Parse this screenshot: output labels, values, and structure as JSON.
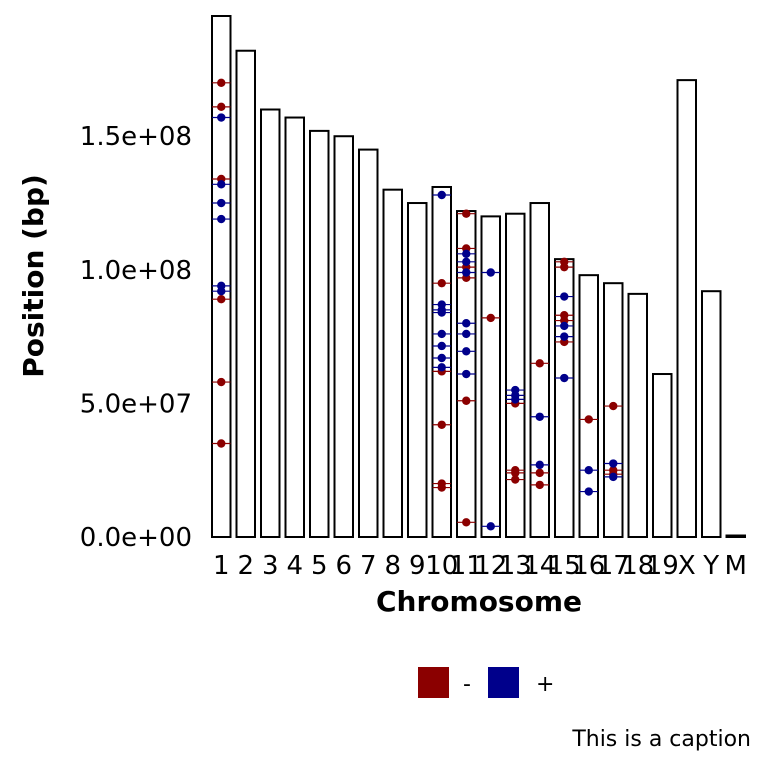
{
  "chart_data": {
    "type": "bar",
    "xlabel": "Chromosome",
    "ylabel": "Position (bp)",
    "caption": "This is a caption",
    "ylim": [
      0,
      195000000
    ],
    "y_ticks": [
      {
        "value": 0,
        "label": "0.0e+00"
      },
      {
        "value": 50000000,
        "label": "5.0e+07"
      },
      {
        "value": 100000000,
        "label": "1.0e+08"
      },
      {
        "value": 150000000,
        "label": "1.5e+08"
      }
    ],
    "categories": [
      "1",
      "2",
      "3",
      "4",
      "5",
      "6",
      "7",
      "8",
      "9",
      "10",
      "11",
      "12",
      "13",
      "14",
      "15",
      "16",
      "17",
      "18",
      "19",
      "X",
      "Y",
      "M"
    ],
    "chromosome_lengths": [
      195000000,
      182000000,
      160000000,
      157000000,
      152000000,
      150000000,
      145000000,
      130000000,
      125000000,
      131000000,
      122000000,
      120000000,
      121000000,
      125000000,
      104000000,
      98000000,
      95000000,
      91000000,
      61000000,
      171000000,
      92000000,
      16000
    ],
    "legend": [
      {
        "label": "-",
        "color": "#8b0000"
      },
      {
        "label": "+",
        "color": "#00008b"
      }
    ],
    "series": [
      {
        "strand": "-",
        "color": "#8b0000",
        "points": [
          {
            "chr": "1",
            "pos": 170000000
          },
          {
            "chr": "1",
            "pos": 161000000
          },
          {
            "chr": "1",
            "pos": 134000000
          },
          {
            "chr": "1",
            "pos": 89000000
          },
          {
            "chr": "1",
            "pos": 58000000
          },
          {
            "chr": "1",
            "pos": 35000000
          },
          {
            "chr": "10",
            "pos": 95000000
          },
          {
            "chr": "10",
            "pos": 62000000
          },
          {
            "chr": "10",
            "pos": 42000000
          },
          {
            "chr": "10",
            "pos": 20000000
          },
          {
            "chr": "10",
            "pos": 18500000
          },
          {
            "chr": "11",
            "pos": 121000000
          },
          {
            "chr": "11",
            "pos": 108000000
          },
          {
            "chr": "11",
            "pos": 101000000
          },
          {
            "chr": "11",
            "pos": 97000000
          },
          {
            "chr": "11",
            "pos": 51000000
          },
          {
            "chr": "11",
            "pos": 5500000
          },
          {
            "chr": "12",
            "pos": 82000000
          },
          {
            "chr": "13",
            "pos": 50000000
          },
          {
            "chr": "13",
            "pos": 25000000
          },
          {
            "chr": "13",
            "pos": 24000000
          },
          {
            "chr": "13",
            "pos": 21500000
          },
          {
            "chr": "14",
            "pos": 65000000
          },
          {
            "chr": "14",
            "pos": 24000000
          },
          {
            "chr": "14",
            "pos": 19500000
          },
          {
            "chr": "15",
            "pos": 103000000
          },
          {
            "chr": "15",
            "pos": 101000000
          },
          {
            "chr": "15",
            "pos": 83000000
          },
          {
            "chr": "15",
            "pos": 81000000
          },
          {
            "chr": "15",
            "pos": 73000000
          },
          {
            "chr": "16",
            "pos": 44000000
          },
          {
            "chr": "17",
            "pos": 49000000
          },
          {
            "chr": "17",
            "pos": 25000000
          },
          {
            "chr": "17",
            "pos": 23500000
          }
        ]
      },
      {
        "strand": "+",
        "color": "#00008b",
        "points": [
          {
            "chr": "1",
            "pos": 157000000
          },
          {
            "chr": "1",
            "pos": 132000000
          },
          {
            "chr": "1",
            "pos": 125000000
          },
          {
            "chr": "1",
            "pos": 119000000
          },
          {
            "chr": "1",
            "pos": 94000000
          },
          {
            "chr": "1",
            "pos": 92000000
          },
          {
            "chr": "10",
            "pos": 128000000
          },
          {
            "chr": "10",
            "pos": 87000000
          },
          {
            "chr": "10",
            "pos": 85000000
          },
          {
            "chr": "10",
            "pos": 84000000
          },
          {
            "chr": "10",
            "pos": 76000000
          },
          {
            "chr": "10",
            "pos": 71500000
          },
          {
            "chr": "10",
            "pos": 67000000
          },
          {
            "chr": "10",
            "pos": 63500000
          },
          {
            "chr": "11",
            "pos": 106000000
          },
          {
            "chr": "11",
            "pos": 103000000
          },
          {
            "chr": "11",
            "pos": 99000000
          },
          {
            "chr": "11",
            "pos": 80000000
          },
          {
            "chr": "11",
            "pos": 76000000
          },
          {
            "chr": "11",
            "pos": 69500000
          },
          {
            "chr": "11",
            "pos": 61000000
          },
          {
            "chr": "12",
            "pos": 99000000
          },
          {
            "chr": "12",
            "pos": 4000000
          },
          {
            "chr": "13",
            "pos": 55000000
          },
          {
            "chr": "13",
            "pos": 53000000
          },
          {
            "chr": "13",
            "pos": 51500000
          },
          {
            "chr": "14",
            "pos": 45000000
          },
          {
            "chr": "14",
            "pos": 27000000
          },
          {
            "chr": "15",
            "pos": 90000000
          },
          {
            "chr": "15",
            "pos": 79000000
          },
          {
            "chr": "15",
            "pos": 75000000
          },
          {
            "chr": "15",
            "pos": 59500000
          },
          {
            "chr": "16",
            "pos": 25000000
          },
          {
            "chr": "16",
            "pos": 17000000
          },
          {
            "chr": "17",
            "pos": 27500000
          },
          {
            "chr": "17",
            "pos": 22500000
          }
        ]
      }
    ]
  }
}
